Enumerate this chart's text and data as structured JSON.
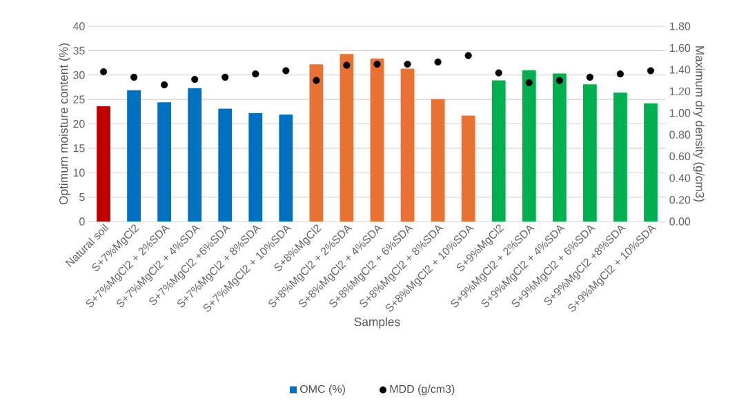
{
  "chart_data": {
    "type": "bar",
    "xlabel": "Samples",
    "ylabel": "Optimum moisture content (%)",
    "y2label": "Maximum dry density (g/cm3)",
    "categories": [
      "Natural soil",
      "S+7%MgCl2",
      "S+7%MgCl2 + 2%SDA",
      "S+7%MgCl2 + 4%SDA",
      "S+7%MgCl2 +6%SDA",
      "S+7%MgCl2 + 8%SDA",
      "S+7%MgCl2 + 10%SDA",
      "S+8%MgCl2",
      "S+8%MgCl2 + 2%SDA",
      "S+8%MgCl2 + 4%SDA",
      "S+8%MgCl2 + 6%SDA",
      "S+8%MgCl2 + 8%SDA",
      "S+8%MgCl2 + 10%SDA",
      "S+9%MgCl2",
      "S+9%MgCl2 + 2%SDA",
      "S+9%MgCl2 + 4%SDA",
      "S+9%MgCl2 + 6%SDA",
      "S+9%MgCl2 +8%SDA",
      "S+9%MgCl2 + 10%SDA"
    ],
    "series": [
      {
        "name": "OMC (%)",
        "color": "#0070c0",
        "colors": [
          "#c00000",
          "#0070c0",
          "#0070c0",
          "#0070c0",
          "#0070c0",
          "#0070c0",
          "#0070c0",
          "#e97132",
          "#e97132",
          "#e97132",
          "#e97132",
          "#e97132",
          "#e97132",
          "#00b050",
          "#00b050",
          "#00b050",
          "#00b050",
          "#00b050",
          "#00b050"
        ],
        "values": [
          23.6,
          26.9,
          24.4,
          27.3,
          23.1,
          22.2,
          21.9,
          32.2,
          34.3,
          33.4,
          31.3,
          25.1,
          21.7,
          28.9,
          31.0,
          30.3,
          28.1,
          26.4,
          24.2
        ]
      },
      {
        "name": "MDD (g/cm3)",
        "type": "scatter",
        "axis": "y2",
        "color": "#000000",
        "marker": "circle",
        "values": [
          1.38,
          1.33,
          1.26,
          1.31,
          1.33,
          1.36,
          1.39,
          1.3,
          1.44,
          1.45,
          1.45,
          1.47,
          1.53,
          1.37,
          1.28,
          1.3,
          1.33,
          1.36,
          1.39
        ]
      }
    ],
    "ylim": [
      0,
      40
    ],
    "yticks": [
      0,
      5,
      10,
      15,
      20,
      25,
      30,
      35,
      40
    ],
    "y2lim": [
      0,
      1.8
    ],
    "y2ticks": [
      {
        "value": 0,
        "label": "0.00"
      },
      {
        "value": 0.2,
        "label": "0.20"
      },
      {
        "value": 0.4,
        "label": "0.40"
      },
      {
        "value": 0.6,
        "label": "0.60"
      },
      {
        "value": 0.8,
        "label": "0.80"
      },
      {
        "value": 1.0,
        "label": "1.00"
      },
      {
        "value": 1.2,
        "label": "1.20"
      },
      {
        "value": 1.4,
        "label": "1.40"
      },
      {
        "value": 1.6,
        "label": "1.60"
      },
      {
        "value": 1.8,
        "label": "1.80"
      }
    ],
    "grid": "y",
    "legend": "bottom"
  }
}
